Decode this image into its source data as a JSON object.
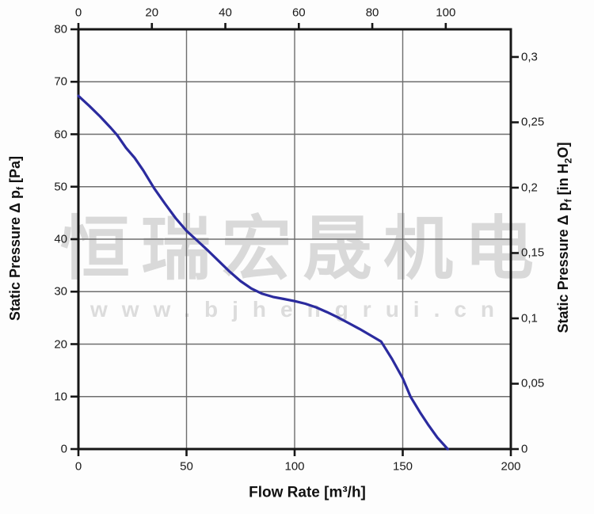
{
  "watermark": {
    "company_cn": "恒瑞宏晟机电",
    "website": "www.bjhengrui.cn"
  },
  "axes": {
    "left": {
      "title_prefix": "Static Pressure Δ p",
      "title_sub": "f",
      "title_suffix": " [Pa]",
      "tick_labels": [
        "0",
        "10",
        "20",
        "30",
        "40",
        "50",
        "60",
        "70",
        "80"
      ]
    },
    "right": {
      "title_prefix": "Static Pressure Δ p",
      "title_sub": "f",
      "title_mid": " [in H",
      "title_sub2": "2",
      "title_suffix": "O]",
      "tick_labels": [
        "0",
        "0,05",
        "0,1",
        "0,15",
        "0,2",
        "0,25",
        "0,3"
      ]
    },
    "bottom": {
      "title": "Flow Rate [m³/h]",
      "tick_labels": [
        "0",
        "50",
        "100",
        "150",
        "200"
      ]
    },
    "top": {
      "tick_labels": [
        "0",
        "20",
        "40",
        "60",
        "80",
        "100"
      ]
    }
  },
  "chart_data": {
    "type": "line",
    "xlabel": "Flow Rate [m³/h]",
    "ylabel_left": "Static Pressure Δ pf [Pa]",
    "ylabel_right": "Static Pressure Δ pf [in H2O]",
    "grid": true,
    "legend": false,
    "x_axis": {
      "range": [
        0,
        200
      ],
      "tick_values": [
        0,
        50,
        100,
        150,
        200
      ],
      "gridlines": [
        50,
        100,
        150
      ]
    },
    "y_axis_left": {
      "range": [
        0,
        80
      ],
      "tick_values": [
        0,
        10,
        20,
        30,
        40,
        50,
        60,
        70,
        80
      ],
      "gridline_step": 10
    },
    "y_axis_right": {
      "tick_values": [
        0,
        0.05,
        0.1,
        0.15,
        0.2,
        0.25,
        0.3
      ],
      "pa_per_inH2O": 249.09
    },
    "x_axis_top": {
      "tick_values": [
        0,
        20,
        40,
        60,
        80,
        100
      ],
      "m3h_per_unit": 1.699
    },
    "colors": {
      "curve": "#2b2b9e",
      "gridline": "#6e6e6e",
      "axis": "#161616"
    },
    "series": [
      {
        "name": "static pressure curve",
        "color": "#2b2b9e",
        "points": [
          [
            0,
            67.3
          ],
          [
            5,
            65.4
          ],
          [
            10,
            63.4
          ],
          [
            15,
            61.2
          ],
          [
            18,
            59.8
          ],
          [
            22,
            57.4
          ],
          [
            26,
            55.5
          ],
          [
            30,
            53.1
          ],
          [
            35,
            49.7
          ],
          [
            40,
            46.8
          ],
          [
            45,
            44.0
          ],
          [
            50,
            41.6
          ],
          [
            55,
            39.7
          ],
          [
            60,
            37.8
          ],
          [
            65,
            35.8
          ],
          [
            70,
            33.8
          ],
          [
            75,
            32.0
          ],
          [
            80,
            30.6
          ],
          [
            85,
            29.6
          ],
          [
            90,
            29.0
          ],
          [
            95,
            28.6
          ],
          [
            100,
            28.2
          ],
          [
            105,
            27.7
          ],
          [
            110,
            27.0
          ],
          [
            115,
            26.1
          ],
          [
            120,
            25.1
          ],
          [
            125,
            24.0
          ],
          [
            130,
            22.9
          ],
          [
            135,
            21.7
          ],
          [
            140,
            20.5
          ],
          [
            145,
            17.2
          ],
          [
            150,
            13.5
          ],
          [
            153.6,
            10.0
          ],
          [
            158,
            7.0
          ],
          [
            162,
            4.5
          ],
          [
            166,
            2.2
          ],
          [
            170.8,
            0.0
          ]
        ]
      }
    ]
  }
}
